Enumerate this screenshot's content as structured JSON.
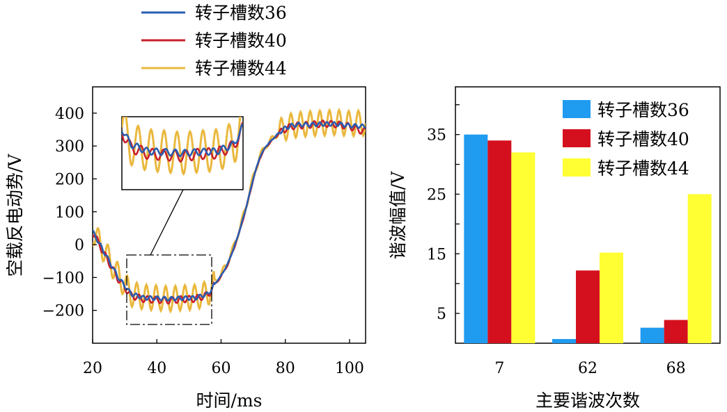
{
  "chart_data": [
    {
      "type": "line",
      "xlabel": "时间/ms",
      "ylabel": "空载反电动势/V",
      "xlim": [
        20,
        105
      ],
      "ylim": [
        -300,
        480
      ],
      "xticks": [
        20,
        40,
        60,
        80,
        100
      ],
      "yticks": [
        -200,
        -100,
        0,
        100,
        200,
        300,
        400
      ],
      "ytick_labels": [
        "−200",
        "−100",
        "0",
        "100",
        "200",
        "300",
        "400"
      ],
      "legend_position": "top-left (above plot)",
      "inset_zoom": true,
      "series": [
        {
          "name": "转子槽数36",
          "color": "#2a5db0",
          "x": [
            20,
            24,
            28,
            32,
            36,
            40,
            44,
            48,
            52,
            56,
            58,
            60,
            62,
            64,
            66,
            68,
            70,
            72,
            74,
            76,
            78,
            80,
            82,
            84,
            88,
            92,
            96,
            100,
            104
          ],
          "y": [
            40,
            -30,
            -100,
            -150,
            -162,
            -163,
            -165,
            -163,
            -162,
            -150,
            -120,
            -95,
            -60,
            -10,
            50,
            120,
            200,
            265,
            300,
            320,
            340,
            355,
            362,
            365,
            365,
            367,
            367,
            362,
            360
          ]
        },
        {
          "name": "转子槽数40",
          "color": "#c8202a",
          "x": [
            20,
            24,
            28,
            32,
            36,
            40,
            44,
            48,
            52,
            56,
            58,
            60,
            62,
            64,
            66,
            68,
            70,
            72,
            74,
            76,
            78,
            80,
            82,
            84,
            88,
            92,
            96,
            100,
            104
          ],
          "y": [
            40,
            -35,
            -105,
            -155,
            -166,
            -168,
            -170,
            -166,
            -165,
            -152,
            -122,
            -97,
            -62,
            -12,
            48,
            118,
            198,
            262,
            298,
            318,
            338,
            352,
            360,
            362,
            365,
            368,
            366,
            360,
            345
          ]
        },
        {
          "name": "转子槽数44",
          "color": "#eab83e",
          "x": [
            20,
            24,
            28,
            32,
            36,
            40,
            44,
            48,
            52,
            56,
            58,
            60,
            62,
            64,
            66,
            68,
            70,
            72,
            74,
            76,
            78,
            80,
            82,
            84,
            88,
            92,
            96,
            100,
            104
          ],
          "y": [
            40,
            -25,
            -95,
            -150,
            -160,
            -162,
            -165,
            -162,
            -160,
            -148,
            -115,
            -90,
            -55,
            -5,
            55,
            125,
            205,
            268,
            302,
            322,
            342,
            355,
            362,
            365,
            368,
            370,
            372,
            368,
            370
          ]
        }
      ]
    },
    {
      "type": "bar",
      "xlabel": "主要谐波次数",
      "ylabel": "谐波幅值/V",
      "categories": [
        "7",
        "62",
        "68"
      ],
      "ylim": [
        0,
        43
      ],
      "yticks": [
        5,
        15,
        25,
        35
      ],
      "legend_position": "top-right",
      "series": [
        {
          "name": "转子槽数36",
          "color": "#1f9bf0",
          "values": [
            35,
            0.7,
            2.6
          ]
        },
        {
          "name": "转子槽数40",
          "color": "#d5101e",
          "values": [
            34,
            12.2,
            3.9
          ]
        },
        {
          "name": "转子槽数44",
          "color": "#ffff33",
          "values": [
            32,
            15.2,
            25
          ]
        }
      ]
    }
  ]
}
